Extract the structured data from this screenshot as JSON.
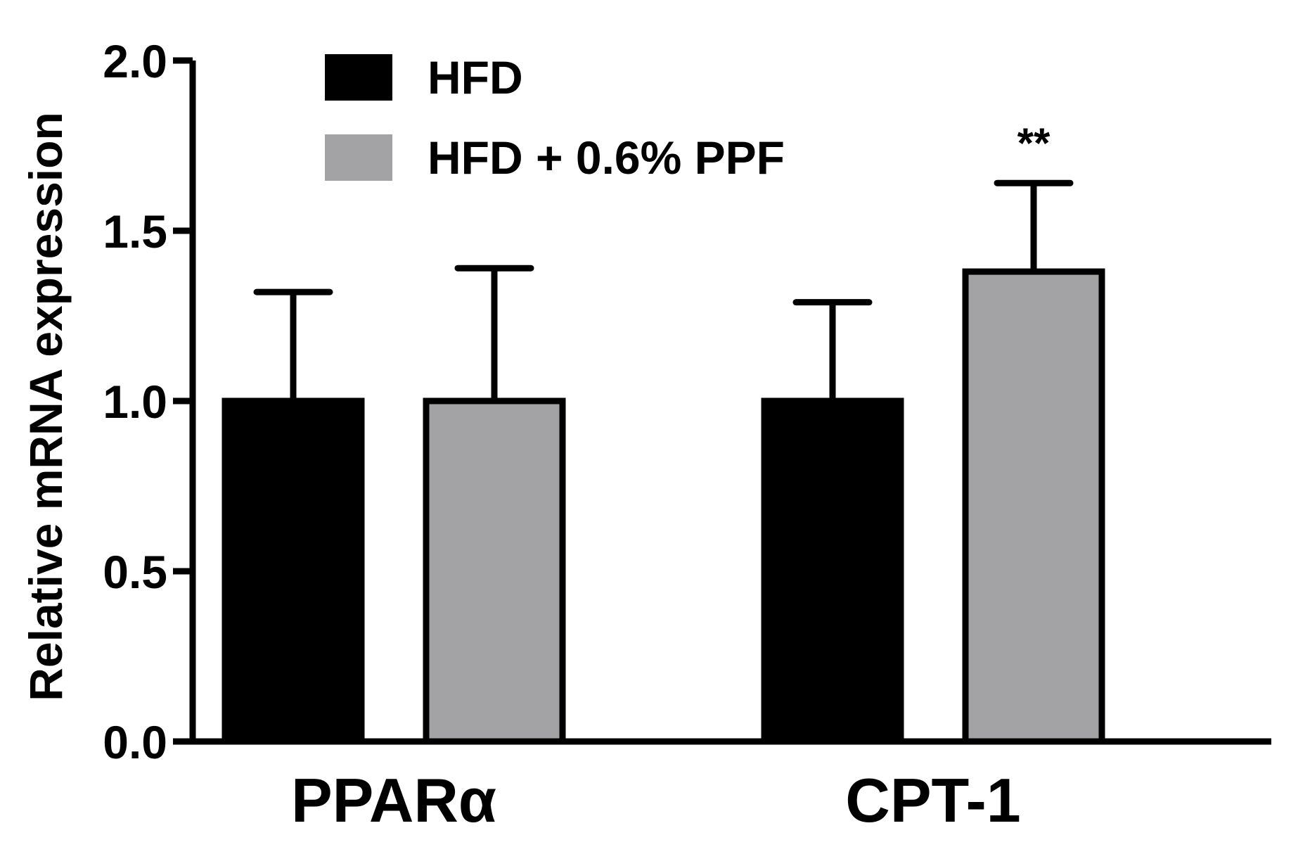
{
  "chart_data": {
    "type": "bar",
    "ylabel": "Relative mRNA expression",
    "ylim": [
      0,
      2.0
    ],
    "yticks": [
      "0.0",
      "0.5",
      "1.0",
      "1.5",
      "2.0"
    ],
    "categories": [
      "PPARα",
      "CPT-1"
    ],
    "series": [
      {
        "name": "HFD",
        "color": "#000000",
        "values": [
          1.0,
          1.0
        ],
        "errors": [
          0.32,
          0.29
        ]
      },
      {
        "name": "HFD + 0.6% PPF",
        "color": "#a3a3a6",
        "values": [
          1.0,
          1.38
        ],
        "errors": [
          0.39,
          0.26
        ]
      }
    ],
    "annotations": [
      {
        "category": "CPT-1",
        "series": "HFD + 0.6% PPF",
        "text": "**"
      }
    ],
    "grid": false,
    "legend_position": "top-left"
  }
}
